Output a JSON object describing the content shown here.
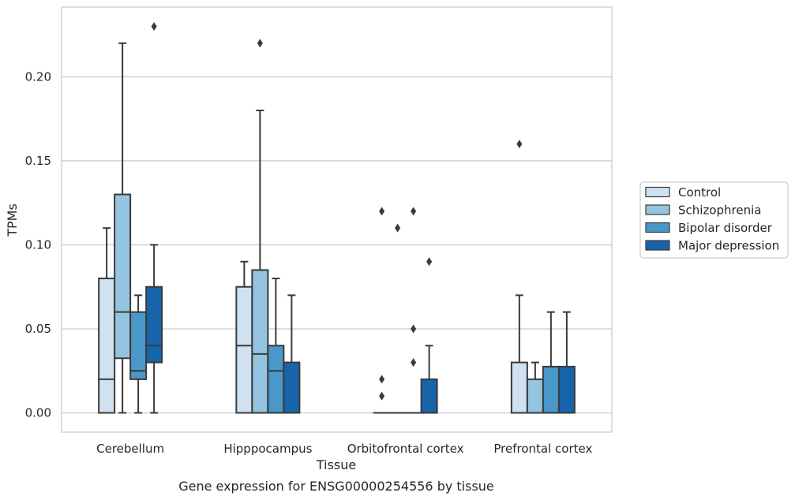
{
  "chart_data": {
    "type": "boxplot",
    "title": "Gene expression for ENSG00000254556 by tissue",
    "xlabel": "Tissue",
    "ylabel": "TPMs",
    "ylim": [
      -0.0115,
      0.2415
    ],
    "yticks": [
      0.0,
      0.05,
      0.1,
      0.15,
      0.2
    ],
    "ytick_labels": [
      "0.00",
      "0.05",
      "0.10",
      "0.15",
      "0.20"
    ],
    "grid": "horizontal",
    "legend_position": "right",
    "categories": [
      "Cerebellum",
      "Hipppocampus",
      "Orbitofrontal cortex",
      "Prefrontal cortex"
    ],
    "series": [
      {
        "name": "Control",
        "color": "#d0e1f2",
        "boxes": [
          {
            "whislo": 0.0,
            "q1": 0.0,
            "med": 0.02,
            "q3": 0.08,
            "whishi": 0.11,
            "fliers": []
          },
          {
            "whislo": 0.0,
            "q1": 0.0,
            "med": 0.04,
            "q3": 0.075,
            "whishi": 0.09,
            "fliers": []
          },
          {
            "whislo": 0.0,
            "q1": 0.0,
            "med": 0.0,
            "q3": 0.0,
            "whishi": 0.0,
            "fliers": [
              0.01,
              0.02,
              0.12
            ]
          },
          {
            "whislo": 0.0,
            "q1": 0.0,
            "med": 0.0,
            "q3": 0.03,
            "whishi": 0.07,
            "fliers": [
              0.16
            ]
          }
        ]
      },
      {
        "name": "Schizophrenia",
        "color": "#94c4df",
        "boxes": [
          {
            "whislo": 0.0,
            "q1": 0.0325,
            "med": 0.06,
            "q3": 0.13,
            "whishi": 0.22,
            "fliers": []
          },
          {
            "whislo": 0.0,
            "q1": 0.0,
            "med": 0.035,
            "q3": 0.085,
            "whishi": 0.18,
            "fliers": [
              0.22
            ]
          },
          {
            "whislo": 0.0,
            "q1": 0.0,
            "med": 0.0,
            "q3": 0.0,
            "whishi": 0.0,
            "fliers": [
              0.11
            ]
          },
          {
            "whislo": 0.0,
            "q1": 0.0,
            "med": 0.0,
            "q3": 0.02,
            "whishi": 0.03,
            "fliers": []
          }
        ]
      },
      {
        "name": "Bipolar disorder",
        "color": "#4a98c9",
        "boxes": [
          {
            "whislo": 0.0,
            "q1": 0.02,
            "med": 0.025,
            "q3": 0.06,
            "whishi": 0.07,
            "fliers": []
          },
          {
            "whislo": 0.0,
            "q1": 0.0,
            "med": 0.025,
            "q3": 0.04,
            "whishi": 0.08,
            "fliers": []
          },
          {
            "whislo": 0.0,
            "q1": 0.0,
            "med": 0.0,
            "q3": 0.0,
            "whishi": 0.0,
            "fliers": [
              0.03,
              0.05,
              0.12
            ]
          },
          {
            "whislo": 0.0,
            "q1": 0.0,
            "med": 0.0,
            "q3": 0.0275,
            "whishi": 0.06,
            "fliers": []
          }
        ]
      },
      {
        "name": "Major depression",
        "color": "#1764ab",
        "boxes": [
          {
            "whislo": 0.0,
            "q1": 0.03,
            "med": 0.04,
            "q3": 0.075,
            "whishi": 0.1,
            "fliers": [
              0.23
            ]
          },
          {
            "whislo": 0.0,
            "q1": 0.0,
            "med": 0.0,
            "q3": 0.03,
            "whishi": 0.07,
            "fliers": []
          },
          {
            "whislo": 0.0,
            "q1": 0.0,
            "med": 0.0,
            "q3": 0.02,
            "whishi": 0.04,
            "fliers": [
              0.09
            ]
          },
          {
            "whislo": 0.0,
            "q1": 0.0,
            "med": 0.0,
            "q3": 0.0275,
            "whishi": 0.06,
            "fliers": []
          }
        ]
      }
    ]
  }
}
